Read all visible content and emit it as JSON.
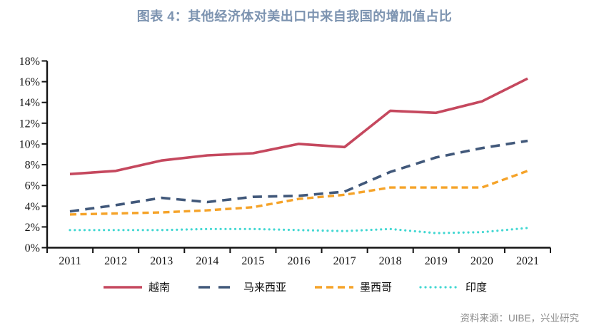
{
  "title": "图表 4：其他经济体对美出口中来自我国的增加值占比",
  "source": "资料来源：UIBE，兴业研究",
  "colors": {
    "title_text": "#7c93b0",
    "axis": "#141414",
    "source_text": "#8c8c8c",
    "vietnam": "#c5485e",
    "malaysia": "#41587a",
    "mexico": "#f5a329",
    "india": "#41d7d2"
  },
  "chart_data": {
    "type": "line",
    "title": "图表 4：其他经济体对美出口中来自我国的增加值占比",
    "x": [
      "2011",
      "2012",
      "2013",
      "2014",
      "2015",
      "2016",
      "2017",
      "2018",
      "2019",
      "2020",
      "2021"
    ],
    "series": [
      {
        "key": "vietnam",
        "name": "越南",
        "color": "#c5485e",
        "line_style": "solid",
        "values": [
          7.1,
          7.4,
          8.4,
          8.9,
          9.1,
          10.0,
          9.7,
          13.2,
          13.0,
          14.1,
          16.3
        ]
      },
      {
        "key": "malaysia",
        "name": "马来西亚",
        "color": "#41587a",
        "line_style": "dashed",
        "values": [
          3.5,
          4.1,
          4.8,
          4.4,
          4.9,
          5.0,
          5.4,
          7.3,
          8.7,
          9.6,
          10.3
        ]
      },
      {
        "key": "mexico",
        "name": "墨西哥",
        "color": "#f5a329",
        "line_style": "dashed-short",
        "values": [
          3.2,
          3.3,
          3.4,
          3.6,
          3.9,
          4.7,
          5.1,
          5.8,
          5.8,
          5.8,
          7.4
        ]
      },
      {
        "key": "india",
        "name": "印度",
        "color": "#41d7d2",
        "line_style": "dotted",
        "values": [
          1.7,
          1.7,
          1.7,
          1.8,
          1.8,
          1.7,
          1.6,
          1.8,
          1.4,
          1.5,
          1.9
        ]
      }
    ],
    "xlabel": "",
    "ylabel": "",
    "ylim": [
      0,
      18
    ],
    "ytick_step": 2,
    "ytick_suffix": "%",
    "grid": false,
    "legend_position": "bottom"
  }
}
